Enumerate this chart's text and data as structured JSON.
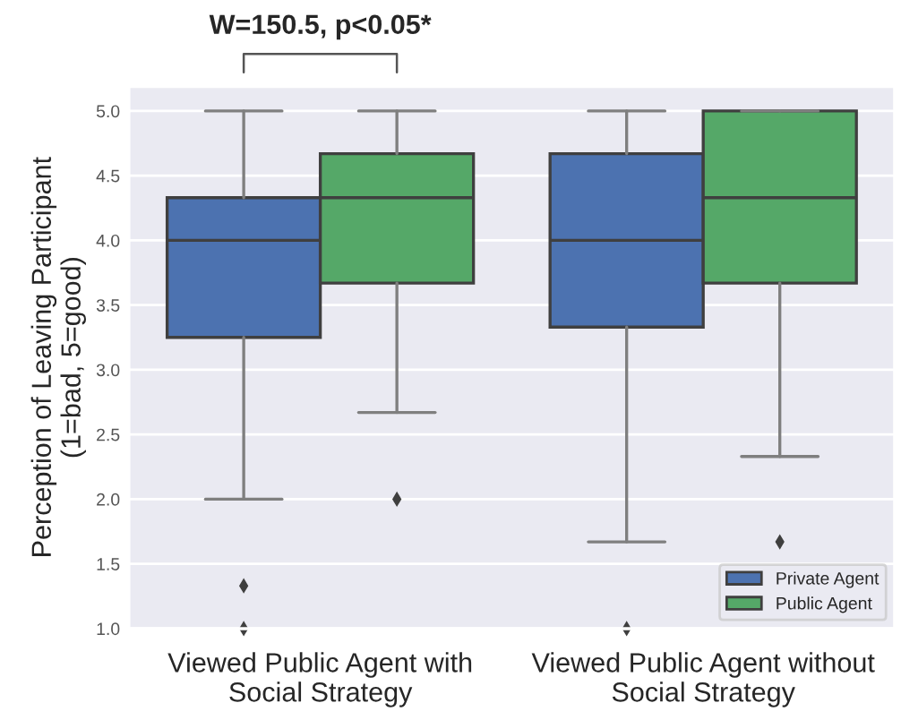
{
  "chart_data": {
    "type": "box",
    "categories": [
      "Viewed Public Agent with\nSocial Strategy",
      "Viewed Public Agent without\nSocial Strategy"
    ],
    "ylabel": "Perception of Leaving Participant\n(1=bad, 5=good)",
    "ylim": [
      1.0,
      5.19
    ],
    "yticks": [
      {
        "value": 1,
        "label": "1.0"
      },
      1.5,
      {
        "value": 2,
        "label": "2.0"
      },
      2.5,
      {
        "value": 3,
        "label": "3.0"
      },
      3.5,
      {
        "value": 4,
        "label": "4.0"
      },
      4.5,
      {
        "value": 5,
        "label": "5.0"
      }
    ],
    "series": [
      {
        "name": "Private Agent",
        "color": "#4c72b0",
        "boxes": [
          {
            "low": 2.0,
            "q1": 3.25,
            "median": 4.0,
            "q3": 4.33,
            "high": 5.0,
            "outliers": [
              1.33,
              1.0
            ]
          },
          {
            "low": 1.67,
            "q1": 3.33,
            "median": 4.0,
            "q3": 4.67,
            "high": 5.0,
            "outliers": [
              1.0
            ]
          }
        ]
      },
      {
        "name": "Public Agent",
        "color": "#55a868",
        "boxes": [
          {
            "low": 2.67,
            "q1": 3.67,
            "median": 4.33,
            "q3": 4.67,
            "high": 5.0,
            "outliers": [
              2.0
            ]
          },
          {
            "low": 2.33,
            "q1": 3.67,
            "median": 4.33,
            "q3": 5.0,
            "high": 5.0,
            "outliers": [
              1.67
            ]
          }
        ]
      }
    ],
    "annotations": [
      "W=150.5, p<0.05*"
    ],
    "grid": "y",
    "legend": "lower right",
    "marker": "diamond"
  }
}
